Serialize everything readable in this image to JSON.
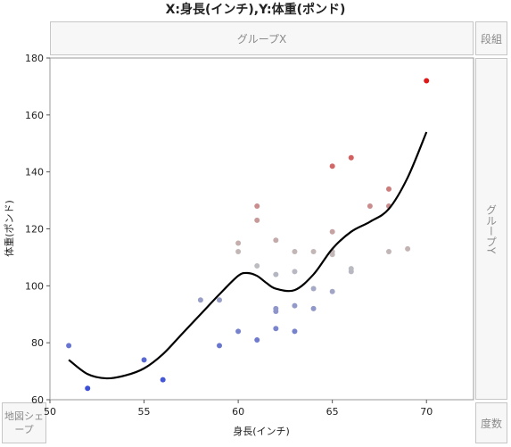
{
  "title": "X:身長(インチ),Y:体重(ポンド)",
  "zones": {
    "group_x": "グループX",
    "wrap": "段組",
    "group_y": "グループY",
    "map_shape": "地図シェープ",
    "frequency": "度数"
  },
  "chart_data": {
    "type": "scatter",
    "title": "X:身長(インチ),Y:体重(ポンド)",
    "xlabel": "身長(インチ)",
    "ylabel": "体重(ポンド)",
    "xlim": [
      50,
      72.5
    ],
    "ylim": [
      60,
      180
    ],
    "xticks": [
      50,
      55,
      60,
      65,
      70
    ],
    "yticks": [
      60,
      80,
      100,
      120,
      140,
      160,
      180
    ],
    "grid": false,
    "color_scale": {
      "low": "#3b4fd8",
      "mid": "#c0c0c0",
      "high": "#e01818"
    },
    "points": [
      {
        "x": 51,
        "y": 79
      },
      {
        "x": 52,
        "y": 64
      },
      {
        "x": 55,
        "y": 74
      },
      {
        "x": 56,
        "y": 67
      },
      {
        "x": 58,
        "y": 95
      },
      {
        "x": 59,
        "y": 79
      },
      {
        "x": 59,
        "y": 95
      },
      {
        "x": 60,
        "y": 84
      },
      {
        "x": 60,
        "y": 112
      },
      {
        "x": 60,
        "y": 115
      },
      {
        "x": 61,
        "y": 81
      },
      {
        "x": 61,
        "y": 107
      },
      {
        "x": 61,
        "y": 123
      },
      {
        "x": 61,
        "y": 128
      },
      {
        "x": 62,
        "y": 85
      },
      {
        "x": 62,
        "y": 91
      },
      {
        "x": 62,
        "y": 92
      },
      {
        "x": 62,
        "y": 104
      },
      {
        "x": 62,
        "y": 116
      },
      {
        "x": 63,
        "y": 84
      },
      {
        "x": 63,
        "y": 93
      },
      {
        "x": 63,
        "y": 105
      },
      {
        "x": 63,
        "y": 112
      },
      {
        "x": 64,
        "y": 92
      },
      {
        "x": 64,
        "y": 99
      },
      {
        "x": 64,
        "y": 112
      },
      {
        "x": 65,
        "y": 98
      },
      {
        "x": 65,
        "y": 111
      },
      {
        "x": 65,
        "y": 112
      },
      {
        "x": 65,
        "y": 119
      },
      {
        "x": 65,
        "y": 142
      },
      {
        "x": 66,
        "y": 105
      },
      {
        "x": 66,
        "y": 106
      },
      {
        "x": 66,
        "y": 145
      },
      {
        "x": 67,
        "y": 128
      },
      {
        "x": 68,
        "y": 112
      },
      {
        "x": 68,
        "y": 128
      },
      {
        "x": 68,
        "y": 134
      },
      {
        "x": 69,
        "y": 113
      },
      {
        "x": 70,
        "y": 172
      }
    ],
    "smoother": {
      "x": [
        51,
        52,
        53,
        54,
        55,
        56,
        57,
        58,
        59,
        60,
        60.5,
        61,
        61.5,
        62,
        63,
        64,
        65,
        66,
        67,
        68,
        69,
        70
      ],
      "y": [
        74,
        69,
        67.5,
        68.5,
        71,
        76,
        83,
        90,
        97,
        103.5,
        104.5,
        103.5,
        101,
        99,
        98.5,
        104,
        113,
        119,
        122.5,
        127,
        138,
        154
      ]
    }
  }
}
